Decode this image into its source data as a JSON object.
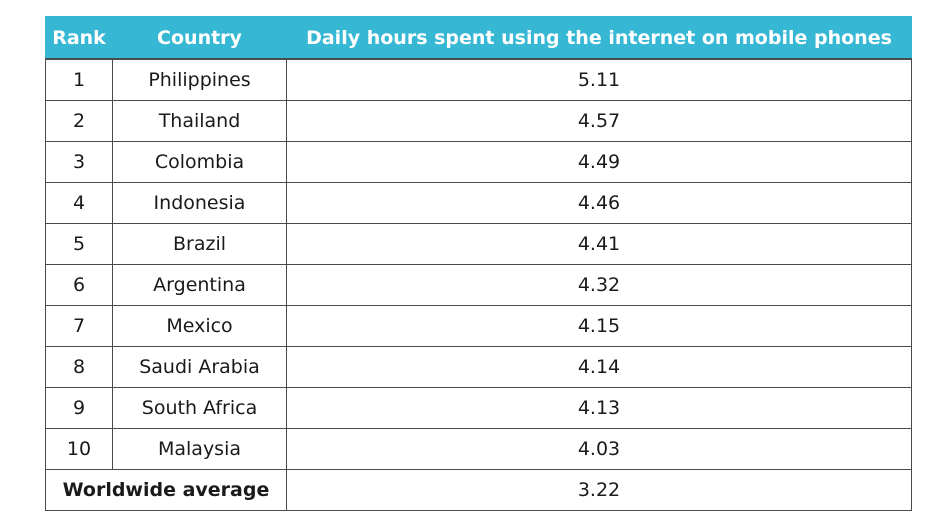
{
  "table": {
    "headers": {
      "rank": "Rank",
      "country": "Country",
      "hours": "Daily hours spent using the internet on mobile phones"
    },
    "rows": [
      {
        "rank": "1",
        "country": "Philippines",
        "hours": "5.11"
      },
      {
        "rank": "2",
        "country": "Thailand",
        "hours": "4.57"
      },
      {
        "rank": "3",
        "country": "Colombia",
        "hours": "4.49"
      },
      {
        "rank": "4",
        "country": "Indonesia",
        "hours": "4.46"
      },
      {
        "rank": "5",
        "country": "Brazil",
        "hours": "4.41"
      },
      {
        "rank": "6",
        "country": "Argentina",
        "hours": "4.32"
      },
      {
        "rank": "7",
        "country": "Mexico",
        "hours": "4.15"
      },
      {
        "rank": "8",
        "country": "Saudi Arabia",
        "hours": "4.14"
      },
      {
        "rank": "9",
        "country": "South Africa",
        "hours": "4.13"
      },
      {
        "rank": "10",
        "country": "Malaysia",
        "hours": "4.03"
      }
    ],
    "average": {
      "label": "Worldwide average",
      "hours": "3.22"
    }
  },
  "colors": {
    "header_background": "#36b8d4",
    "header_text": "#ffffff",
    "border": "#4a4a4a"
  }
}
